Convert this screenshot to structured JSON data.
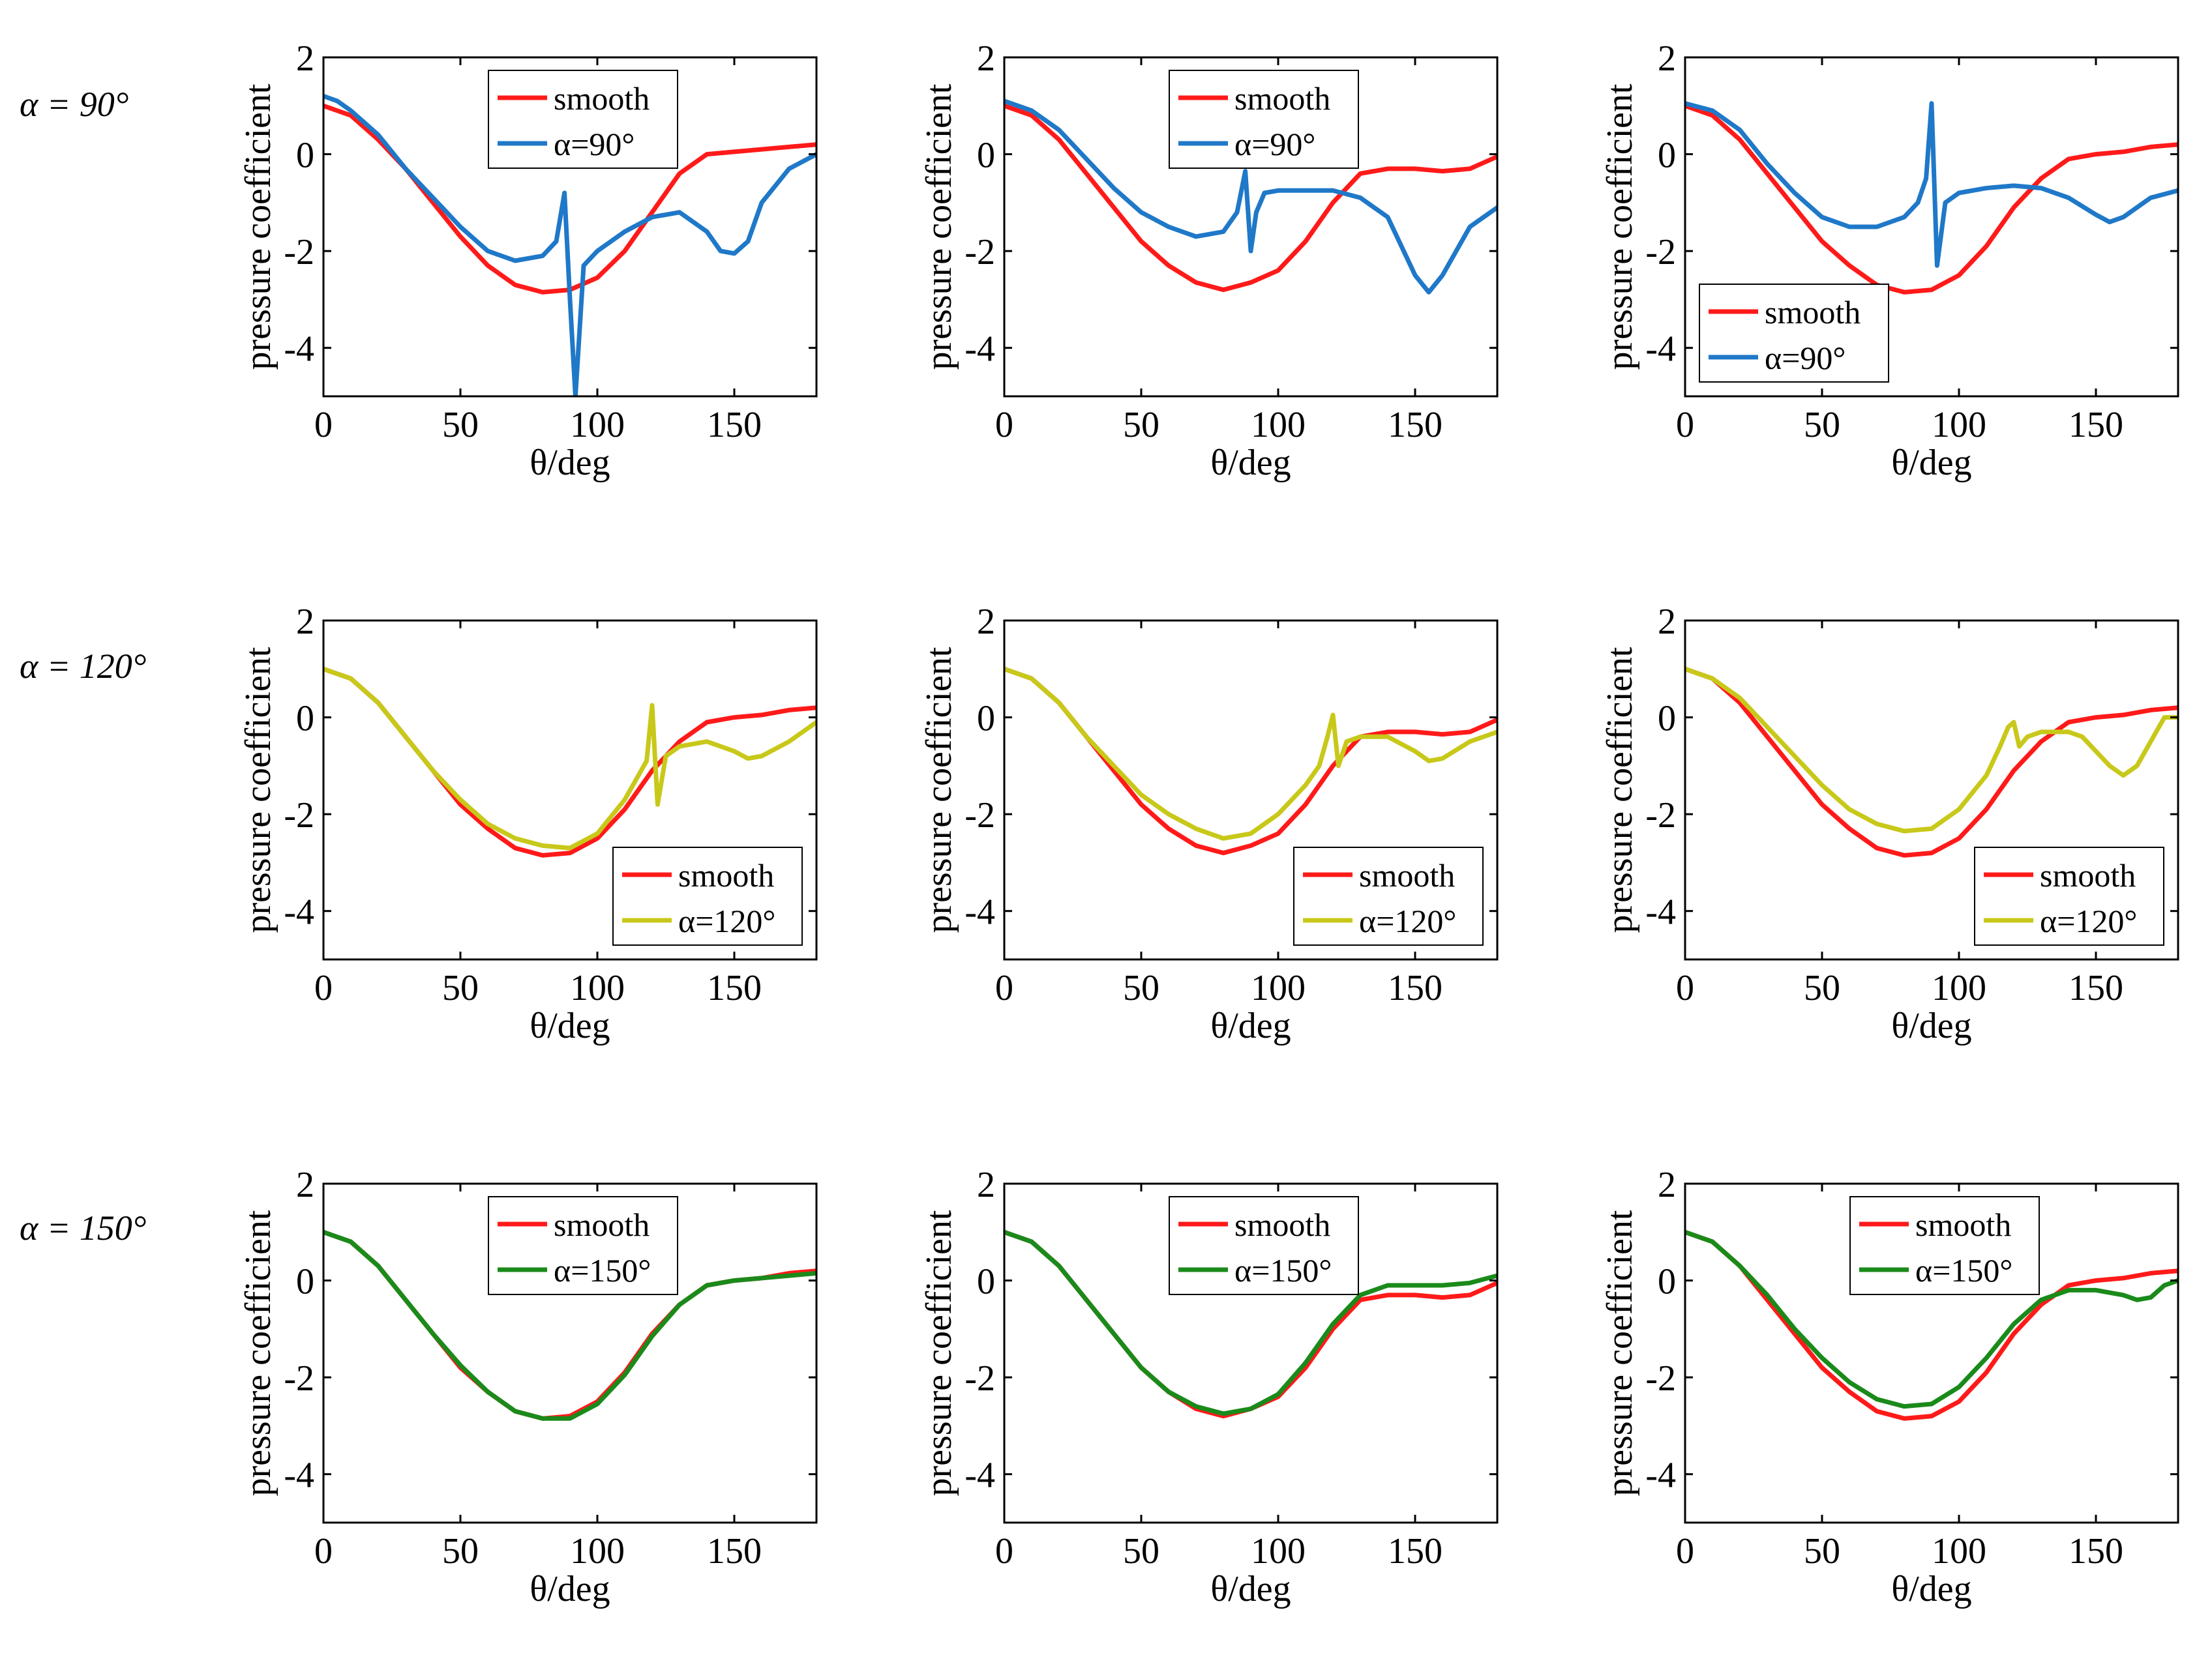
{
  "row_labels": [
    "α = 90°",
    "α = 120°",
    "α = 150°"
  ],
  "colors": {
    "smooth": "#ff1a1a",
    "a90": "#1f78c8",
    "a120": "#c8c81a",
    "a150": "#1a8a1a",
    "axis": "#000000"
  },
  "chart_data": [
    {
      "id": "r1c1",
      "row": 0,
      "col": 0,
      "type": "line",
      "xlabel": "θ/deg",
      "ylabel": "pressure coefficient",
      "xlim": [
        0,
        180
      ],
      "ylim": [
        -5,
        2
      ],
      "xticks": [
        0,
        50,
        100,
        150
      ],
      "yticks": [
        2,
        0,
        -2,
        -4
      ],
      "legend_position": "top-center",
      "series": [
        {
          "name": "smooth",
          "color": "#ff1a1a",
          "x": [
            0,
            10,
            20,
            30,
            40,
            50,
            60,
            70,
            80,
            90,
            100,
            110,
            120,
            130,
            140,
            150,
            160,
            170,
            180
          ],
          "y": [
            1.0,
            0.8,
            0.3,
            -0.3,
            -1.0,
            -1.7,
            -2.3,
            -2.7,
            -2.85,
            -2.8,
            -2.55,
            -2.0,
            -1.2,
            -0.4,
            0.0,
            0.05,
            0.1,
            0.15,
            0.2
          ]
        },
        {
          "name": "α=90°",
          "color": "#1f78c8",
          "x": [
            0,
            5,
            10,
            20,
            30,
            40,
            50,
            60,
            70,
            80,
            85,
            88,
            90,
            92,
            95,
            100,
            110,
            120,
            130,
            140,
            145,
            150,
            155,
            160,
            170,
            180
          ],
          "y": [
            1.2,
            1.1,
            0.9,
            0.4,
            -0.3,
            -0.9,
            -1.5,
            -2.0,
            -2.2,
            -2.1,
            -1.8,
            -0.8,
            -3.0,
            -5.0,
            -2.3,
            -2.0,
            -1.6,
            -1.3,
            -1.2,
            -1.6,
            -2.0,
            -2.05,
            -1.8,
            -1.0,
            -0.3,
            0.0
          ]
        }
      ]
    },
    {
      "id": "r1c2",
      "row": 0,
      "col": 1,
      "type": "line",
      "xlabel": "θ/deg",
      "ylabel": "pressure coefficient",
      "xlim": [
        0,
        180
      ],
      "ylim": [
        -5,
        2
      ],
      "xticks": [
        0,
        50,
        100,
        150
      ],
      "yticks": [
        2,
        0,
        -2,
        -4
      ],
      "legend_position": "top-center",
      "series": [
        {
          "name": "smooth",
          "color": "#ff1a1a",
          "x": [
            0,
            10,
            20,
            30,
            40,
            50,
            60,
            70,
            80,
            90,
            100,
            110,
            120,
            130,
            140,
            150,
            160,
            170,
            180
          ],
          "y": [
            1.0,
            0.8,
            0.3,
            -0.4,
            -1.1,
            -1.8,
            -2.3,
            -2.65,
            -2.8,
            -2.65,
            -2.4,
            -1.8,
            -1.0,
            -0.4,
            -0.3,
            -0.3,
            -0.35,
            -0.3,
            -0.05
          ]
        },
        {
          "name": "α=90°",
          "color": "#1f78c8",
          "x": [
            0,
            10,
            20,
            30,
            40,
            50,
            60,
            70,
            80,
            85,
            88,
            90,
            92,
            95,
            100,
            110,
            120,
            130,
            140,
            150,
            155,
            160,
            170,
            180
          ],
          "y": [
            1.1,
            0.9,
            0.5,
            -0.1,
            -0.7,
            -1.2,
            -1.5,
            -1.7,
            -1.6,
            -1.2,
            -0.35,
            -2.0,
            -1.2,
            -0.8,
            -0.75,
            -0.75,
            -0.75,
            -0.9,
            -1.3,
            -2.5,
            -2.85,
            -2.5,
            -1.5,
            -1.1
          ]
        }
      ]
    },
    {
      "id": "r1c3",
      "row": 0,
      "col": 2,
      "type": "line",
      "xlabel": "θ/deg",
      "ylabel": "pressure coefficient",
      "xlim": [
        0,
        180
      ],
      "ylim": [
        -5,
        2
      ],
      "xticks": [
        0,
        50,
        100,
        150
      ],
      "yticks": [
        2,
        0,
        -2,
        -4
      ],
      "legend_position": "bottom-left",
      "series": [
        {
          "name": "smooth",
          "color": "#ff1a1a",
          "x": [
            0,
            10,
            20,
            30,
            40,
            50,
            60,
            70,
            80,
            90,
            100,
            110,
            120,
            130,
            140,
            150,
            160,
            170,
            180
          ],
          "y": [
            1.0,
            0.8,
            0.3,
            -0.4,
            -1.1,
            -1.8,
            -2.3,
            -2.7,
            -2.85,
            -2.8,
            -2.5,
            -1.9,
            -1.1,
            -0.5,
            -0.1,
            0.0,
            0.05,
            0.15,
            0.2
          ]
        },
        {
          "name": "α=90°",
          "color": "#1f78c8",
          "x": [
            0,
            10,
            20,
            30,
            40,
            50,
            60,
            70,
            80,
            85,
            88,
            90,
            92,
            95,
            100,
            110,
            120,
            130,
            140,
            150,
            155,
            160,
            170,
            180
          ],
          "y": [
            1.05,
            0.9,
            0.5,
            -0.2,
            -0.8,
            -1.3,
            -1.5,
            -1.5,
            -1.3,
            -1.0,
            -0.5,
            1.05,
            -2.3,
            -1.0,
            -0.8,
            -0.7,
            -0.65,
            -0.7,
            -0.9,
            -1.25,
            -1.4,
            -1.3,
            -0.9,
            -0.75
          ]
        }
      ]
    },
    {
      "id": "r2c1",
      "row": 1,
      "col": 0,
      "type": "line",
      "xlabel": "θ/deg",
      "ylabel": "pressure coefficient",
      "xlim": [
        0,
        180
      ],
      "ylim": [
        -5,
        2
      ],
      "xticks": [
        0,
        50,
        100,
        150
      ],
      "yticks": [
        2,
        0,
        -2,
        -4
      ],
      "legend_position": "bottom-right",
      "series": [
        {
          "name": "smooth",
          "color": "#ff1a1a",
          "x": [
            0,
            10,
            20,
            30,
            40,
            50,
            60,
            70,
            80,
            90,
            100,
            110,
            120,
            130,
            140,
            150,
            160,
            170,
            180
          ],
          "y": [
            1.0,
            0.8,
            0.3,
            -0.4,
            -1.1,
            -1.8,
            -2.3,
            -2.7,
            -2.85,
            -2.8,
            -2.5,
            -1.9,
            -1.1,
            -0.5,
            -0.1,
            0.0,
            0.05,
            0.15,
            0.2
          ]
        },
        {
          "name": "α=120°",
          "color": "#c8c81a",
          "x": [
            0,
            10,
            20,
            30,
            40,
            50,
            60,
            70,
            80,
            90,
            100,
            110,
            115,
            118,
            120,
            122,
            125,
            130,
            140,
            150,
            155,
            160,
            170,
            180
          ],
          "y": [
            1.0,
            0.8,
            0.3,
            -0.4,
            -1.1,
            -1.7,
            -2.2,
            -2.5,
            -2.65,
            -2.7,
            -2.4,
            -1.7,
            -1.2,
            -0.9,
            0.25,
            -1.8,
            -0.8,
            -0.6,
            -0.5,
            -0.7,
            -0.85,
            -0.8,
            -0.5,
            -0.1
          ]
        }
      ]
    },
    {
      "id": "r2c2",
      "row": 1,
      "col": 1,
      "type": "line",
      "xlabel": "θ/deg",
      "ylabel": "pressure coefficient",
      "xlim": [
        0,
        180
      ],
      "ylim": [
        -5,
        2
      ],
      "xticks": [
        0,
        50,
        100,
        150
      ],
      "yticks": [
        2,
        0,
        -2,
        -4
      ],
      "legend_position": "bottom-right",
      "series": [
        {
          "name": "smooth",
          "color": "#ff1a1a",
          "x": [
            0,
            10,
            20,
            30,
            40,
            50,
            60,
            70,
            80,
            90,
            100,
            110,
            120,
            130,
            140,
            150,
            160,
            170,
            180
          ],
          "y": [
            1.0,
            0.8,
            0.3,
            -0.4,
            -1.1,
            -1.8,
            -2.3,
            -2.65,
            -2.8,
            -2.65,
            -2.4,
            -1.8,
            -1.0,
            -0.4,
            -0.3,
            -0.3,
            -0.35,
            -0.3,
            -0.05
          ]
        },
        {
          "name": "α=120°",
          "color": "#c8c81a",
          "x": [
            0,
            10,
            20,
            30,
            40,
            50,
            60,
            70,
            80,
            90,
            100,
            110,
            115,
            118,
            120,
            122,
            125,
            130,
            140,
            150,
            155,
            160,
            170,
            180
          ],
          "y": [
            1.0,
            0.8,
            0.3,
            -0.4,
            -1.0,
            -1.6,
            -2.0,
            -2.3,
            -2.5,
            -2.4,
            -2.0,
            -1.4,
            -1.0,
            -0.4,
            0.05,
            -1.0,
            -0.5,
            -0.4,
            -0.4,
            -0.7,
            -0.9,
            -0.85,
            -0.5,
            -0.3
          ]
        }
      ]
    },
    {
      "id": "r2c3",
      "row": 1,
      "col": 2,
      "type": "line",
      "xlabel": "θ/deg",
      "ylabel": "pressure coefficient",
      "xlim": [
        0,
        180
      ],
      "ylim": [
        -5,
        2
      ],
      "xticks": [
        0,
        50,
        100,
        150
      ],
      "yticks": [
        2,
        0,
        -2,
        -4
      ],
      "legend_position": "bottom-right",
      "series": [
        {
          "name": "smooth",
          "color": "#ff1a1a",
          "x": [
            0,
            10,
            20,
            30,
            40,
            50,
            60,
            70,
            80,
            90,
            100,
            110,
            120,
            130,
            140,
            150,
            160,
            170,
            180
          ],
          "y": [
            1.0,
            0.8,
            0.3,
            -0.4,
            -1.1,
            -1.8,
            -2.3,
            -2.7,
            -2.85,
            -2.8,
            -2.5,
            -1.9,
            -1.1,
            -0.5,
            -0.1,
            0.0,
            0.05,
            0.15,
            0.2
          ]
        },
        {
          "name": "α=120°",
          "color": "#c8c81a",
          "x": [
            0,
            10,
            20,
            30,
            40,
            50,
            60,
            70,
            80,
            90,
            100,
            110,
            115,
            118,
            120,
            122,
            125,
            130,
            140,
            145,
            150,
            155,
            160,
            165,
            170,
            175,
            180
          ],
          "y": [
            1.0,
            0.8,
            0.4,
            -0.2,
            -0.8,
            -1.4,
            -1.9,
            -2.2,
            -2.35,
            -2.3,
            -1.9,
            -1.2,
            -0.6,
            -0.2,
            -0.1,
            -0.6,
            -0.4,
            -0.3,
            -0.3,
            -0.4,
            -0.7,
            -1.0,
            -1.2,
            -1.0,
            -0.5,
            0.0,
            0.0
          ]
        }
      ]
    },
    {
      "id": "r3c1",
      "row": 2,
      "col": 0,
      "type": "line",
      "xlabel": "θ/deg",
      "ylabel": "pressure coefficient",
      "xlim": [
        0,
        180
      ],
      "ylim": [
        -5,
        2
      ],
      "xticks": [
        0,
        50,
        100,
        150
      ],
      "yticks": [
        2,
        0,
        -2,
        -4
      ],
      "legend_position": "top-center",
      "series": [
        {
          "name": "smooth",
          "color": "#ff1a1a",
          "x": [
            0,
            10,
            20,
            30,
            40,
            50,
            60,
            70,
            80,
            90,
            100,
            110,
            120,
            130,
            140,
            150,
            160,
            170,
            180
          ],
          "y": [
            1.0,
            0.8,
            0.3,
            -0.4,
            -1.1,
            -1.8,
            -2.3,
            -2.7,
            -2.85,
            -2.8,
            -2.5,
            -1.9,
            -1.1,
            -0.5,
            -0.1,
            0.0,
            0.05,
            0.15,
            0.2
          ]
        },
        {
          "name": "α=150°",
          "color": "#1a8a1a",
          "x": [
            0,
            10,
            20,
            30,
            40,
            50,
            60,
            70,
            80,
            90,
            100,
            110,
            120,
            130,
            140,
            150,
            160,
            170,
            180
          ],
          "y": [
            1.0,
            0.8,
            0.3,
            -0.4,
            -1.1,
            -1.75,
            -2.3,
            -2.7,
            -2.85,
            -2.85,
            -2.55,
            -1.95,
            -1.15,
            -0.5,
            -0.1,
            0.0,
            0.05,
            0.1,
            0.15
          ]
        }
      ]
    },
    {
      "id": "r3c2",
      "row": 2,
      "col": 1,
      "type": "line",
      "xlabel": "θ/deg",
      "ylabel": "pressure coefficient",
      "xlim": [
        0,
        180
      ],
      "ylim": [
        -5,
        2
      ],
      "xticks": [
        0,
        50,
        100,
        150
      ],
      "yticks": [
        2,
        0,
        -2,
        -4
      ],
      "legend_position": "top-center",
      "series": [
        {
          "name": "smooth",
          "color": "#ff1a1a",
          "x": [
            0,
            10,
            20,
            30,
            40,
            50,
            60,
            70,
            80,
            90,
            100,
            110,
            120,
            130,
            140,
            150,
            160,
            170,
            180
          ],
          "y": [
            1.0,
            0.8,
            0.3,
            -0.4,
            -1.1,
            -1.8,
            -2.3,
            -2.65,
            -2.8,
            -2.65,
            -2.4,
            -1.8,
            -1.0,
            -0.4,
            -0.3,
            -0.3,
            -0.35,
            -0.3,
            -0.05
          ]
        },
        {
          "name": "α=150°",
          "color": "#1a8a1a",
          "x": [
            0,
            10,
            20,
            30,
            40,
            50,
            60,
            70,
            80,
            90,
            100,
            110,
            120,
            130,
            140,
            150,
            160,
            170,
            180
          ],
          "y": [
            1.0,
            0.8,
            0.3,
            -0.4,
            -1.1,
            -1.8,
            -2.3,
            -2.6,
            -2.75,
            -2.65,
            -2.35,
            -1.7,
            -0.9,
            -0.3,
            -0.1,
            -0.1,
            -0.1,
            -0.05,
            0.1
          ]
        }
      ]
    },
    {
      "id": "r3c3",
      "row": 2,
      "col": 2,
      "type": "line",
      "xlabel": "θ/deg",
      "ylabel": "pressure coefficient",
      "xlim": [
        0,
        180
      ],
      "ylim": [
        -5,
        2
      ],
      "xticks": [
        0,
        50,
        100,
        150
      ],
      "yticks": [
        2,
        0,
        -2,
        -4
      ],
      "legend_position": "top-center",
      "series": [
        {
          "name": "smooth",
          "color": "#ff1a1a",
          "x": [
            0,
            10,
            20,
            30,
            40,
            50,
            60,
            70,
            80,
            90,
            100,
            110,
            120,
            130,
            140,
            150,
            160,
            170,
            180
          ],
          "y": [
            1.0,
            0.8,
            0.3,
            -0.4,
            -1.1,
            -1.8,
            -2.3,
            -2.7,
            -2.85,
            -2.8,
            -2.5,
            -1.9,
            -1.1,
            -0.5,
            -0.1,
            0.0,
            0.05,
            0.15,
            0.2
          ]
        },
        {
          "name": "α=150°",
          "color": "#1a8a1a",
          "x": [
            0,
            10,
            20,
            30,
            40,
            50,
            60,
            70,
            80,
            90,
            100,
            110,
            120,
            130,
            140,
            150,
            160,
            165,
            170,
            175,
            180
          ],
          "y": [
            1.0,
            0.8,
            0.3,
            -0.3,
            -1.0,
            -1.6,
            -2.1,
            -2.45,
            -2.6,
            -2.55,
            -2.2,
            -1.6,
            -0.9,
            -0.4,
            -0.2,
            -0.2,
            -0.3,
            -0.4,
            -0.35,
            -0.1,
            0.0
          ]
        }
      ]
    }
  ]
}
